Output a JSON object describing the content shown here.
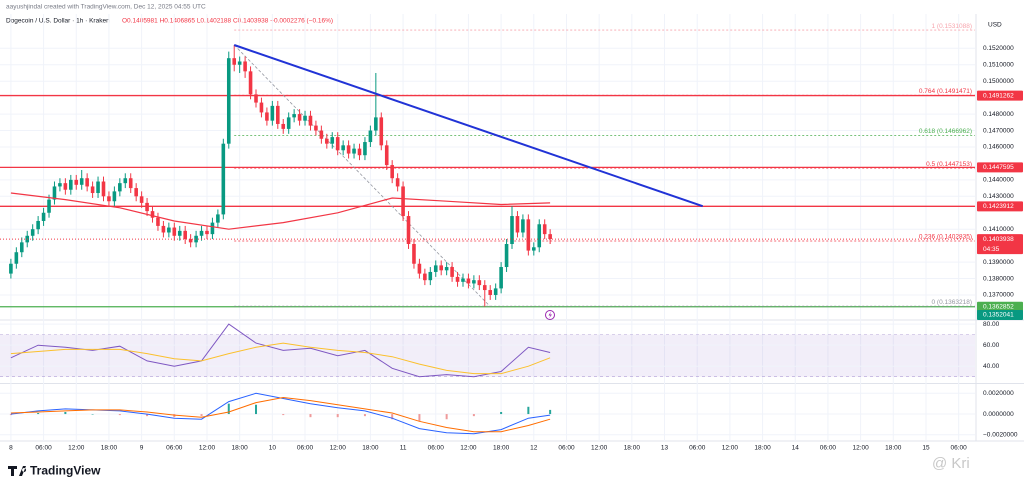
{
  "header": {
    "attribution": "aayushjindal created with TradingView.com, Dec 12, 2025 04:55 UTC",
    "symbol": "Dogecoin / U.S. Dollar · 1h · Kraken",
    "ohlc": "O0.1405981 H0.1406865 L0.1402188 C0.1403938 −0.0002276 (−0.16%)"
  },
  "chart_data": [
    {
      "type": "candlestick",
      "currency": "USD",
      "grid": true,
      "up_color": "#089981",
      "down_color": "#f23645",
      "ylim": [
        0.1356,
        0.1536
      ],
      "yticks": [
        {
          "value": 0.152,
          "label": "0.1520000"
        },
        {
          "value": 0.151,
          "label": "0.1510000"
        },
        {
          "value": 0.15,
          "label": "0.1500000"
        },
        {
          "value": 0.148,
          "label": "0.1480000"
        },
        {
          "value": 0.147,
          "label": "0.1470000"
        },
        {
          "value": 0.146,
          "label": "0.1460000"
        },
        {
          "value": 0.144,
          "label": "0.1440000"
        },
        {
          "value": 0.143,
          "label": "0.1430000"
        },
        {
          "value": 0.141,
          "label": "0.1410000"
        },
        {
          "value": 0.139,
          "label": "0.1390000"
        },
        {
          "value": 0.138,
          "label": "0.1380000"
        },
        {
          "value": 0.137,
          "label": "0.1370000"
        }
      ],
      "xlim": [
        -2,
        177
      ],
      "xticks": [
        {
          "value": 0,
          "label": "8"
        },
        {
          "value": 6,
          "label": "06:00"
        },
        {
          "value": 12,
          "label": "12:00"
        },
        {
          "value": 18,
          "label": "18:00"
        },
        {
          "value": 24,
          "label": "9"
        },
        {
          "value": 30,
          "label": "06:00"
        },
        {
          "value": 36,
          "label": "12:00"
        },
        {
          "value": 42,
          "label": "18:00"
        },
        {
          "value": 48,
          "label": "10"
        },
        {
          "value": 54,
          "label": "06:00"
        },
        {
          "value": 60,
          "label": "12:00"
        },
        {
          "value": 66,
          "label": "18:00"
        },
        {
          "value": 72,
          "label": "11"
        },
        {
          "value": 78,
          "label": "06:00"
        },
        {
          "value": 84,
          "label": "12:00"
        },
        {
          "value": 90,
          "label": "18:00"
        },
        {
          "value": 96,
          "label": "12"
        },
        {
          "value": 102,
          "label": "06:00"
        },
        {
          "value": 108,
          "label": "12:00"
        },
        {
          "value": 114,
          "label": "18:00"
        },
        {
          "value": 120,
          "label": "13"
        },
        {
          "value": 126,
          "label": "06:00"
        },
        {
          "value": 132,
          "label": "12:00"
        },
        {
          "value": 138,
          "label": "18:00"
        },
        {
          "value": 144,
          "label": "14"
        },
        {
          "value": 150,
          "label": "06:00"
        },
        {
          "value": 156,
          "label": "12:00"
        },
        {
          "value": 162,
          "label": "18:00"
        },
        {
          "value": 168,
          "label": "15"
        },
        {
          "value": 174,
          "label": "06:00"
        }
      ],
      "open": [
        0.1383,
        0.1389,
        0.1396,
        0.1402,
        0.1406,
        0.141,
        0.1415,
        0.142,
        0.1428,
        0.1436,
        0.1438,
        0.1434,
        0.144,
        0.1437,
        0.1441,
        0.1436,
        0.1432,
        0.1439,
        0.143,
        0.1427,
        0.1433,
        0.1438,
        0.1441,
        0.1435,
        0.143,
        0.1426,
        0.1421,
        0.1417,
        0.1412,
        0.1408,
        0.1411,
        0.1406,
        0.1409,
        0.1404,
        0.1402,
        0.1406,
        0.1409,
        0.1407,
        0.1414,
        0.1419,
        0.1462,
        0.1514,
        0.151,
        0.1512,
        0.1506,
        0.1492,
        0.1487,
        0.1481,
        0.1476,
        0.1485,
        0.1474,
        0.1471,
        0.1478,
        0.148,
        0.1476,
        0.1479,
        0.1473,
        0.147,
        0.1465,
        0.1462,
        0.1466,
        0.1458,
        0.1461,
        0.1456,
        0.1459,
        0.1455,
        0.1463,
        0.147,
        0.1478,
        0.1461,
        0.1449,
        0.1441,
        0.1436,
        0.1418,
        0.1401,
        0.1389,
        0.1383,
        0.1379,
        0.1384,
        0.1388,
        0.1385,
        0.1387,
        0.1381,
        0.1378,
        0.138,
        0.1377,
        0.1379,
        0.1376,
        0.1373,
        0.137,
        0.1374,
        0.1387,
        0.1401,
        0.1418,
        0.1408,
        0.1416,
        0.1397,
        0.1399,
        0.1413,
        0.1407
      ],
      "high": [
        0.1392,
        0.1399,
        0.1405,
        0.1409,
        0.1413,
        0.1418,
        0.1423,
        0.1431,
        0.1439,
        0.1441,
        0.1441,
        0.1443,
        0.1443,
        0.1446,
        0.1444,
        0.1439,
        0.1442,
        0.1442,
        0.1433,
        0.1436,
        0.1441,
        0.1444,
        0.1444,
        0.1438,
        0.1433,
        0.1429,
        0.1424,
        0.142,
        0.1415,
        0.1414,
        0.1414,
        0.1412,
        0.1412,
        0.1407,
        0.1409,
        0.1412,
        0.1412,
        0.1417,
        0.1422,
        0.1465,
        0.1518,
        0.1522,
        0.1515,
        0.1515,
        0.1509,
        0.1495,
        0.149,
        0.1484,
        0.1488,
        0.1488,
        0.1477,
        0.1481,
        0.1483,
        0.1483,
        0.1482,
        0.1482,
        0.1476,
        0.1473,
        0.1468,
        0.1469,
        0.1469,
        0.1464,
        0.1464,
        0.1462,
        0.1462,
        0.1466,
        0.1473,
        0.1505,
        0.1481,
        0.1464,
        0.1452,
        0.1444,
        0.1439,
        0.1421,
        0.1404,
        0.1392,
        0.1386,
        0.1387,
        0.1391,
        0.1391,
        0.139,
        0.139,
        0.1384,
        0.1383,
        0.1383,
        0.1382,
        0.1382,
        0.1379,
        0.1376,
        0.1377,
        0.139,
        0.1404,
        0.1424,
        0.1421,
        0.1419,
        0.1419,
        0.1402,
        0.1416,
        0.1416,
        0.141
      ],
      "low": [
        0.138,
        0.1386,
        0.1393,
        0.1399,
        0.1403,
        0.1407,
        0.1412,
        0.1417,
        0.1425,
        0.1433,
        0.1431,
        0.1431,
        0.1434,
        0.1434,
        0.1433,
        0.1429,
        0.1429,
        0.1427,
        0.1424,
        0.1424,
        0.143,
        0.1435,
        0.1432,
        0.1427,
        0.1423,
        0.1418,
        0.1414,
        0.1409,
        0.1405,
        0.1405,
        0.1403,
        0.1403,
        0.1401,
        0.1399,
        0.1399,
        0.1403,
        0.1404,
        0.1404,
        0.1411,
        0.1416,
        0.1459,
        0.1506,
        0.1505,
        0.1502,
        0.1489,
        0.1484,
        0.1478,
        0.1473,
        0.1473,
        0.1471,
        0.1468,
        0.1468,
        0.1475,
        0.1473,
        0.1473,
        0.147,
        0.1467,
        0.1462,
        0.1459,
        0.1459,
        0.1455,
        0.1455,
        0.1453,
        0.1453,
        0.1452,
        0.1452,
        0.146,
        0.1467,
        0.1458,
        0.1446,
        0.1438,
        0.1433,
        0.1415,
        0.1398,
        0.1386,
        0.138,
        0.1376,
        0.1376,
        0.1381,
        0.1382,
        0.1382,
        0.1378,
        0.1375,
        0.1375,
        0.1374,
        0.1374,
        0.1373,
        0.1363,
        0.1367,
        0.1367,
        0.1371,
        0.1384,
        0.1398,
        0.1405,
        0.1405,
        0.1394,
        0.1394,
        0.1396,
        0.1404,
        0.1401
      ],
      "close": [
        0.1389,
        0.1396,
        0.1402,
        0.1406,
        0.141,
        0.1415,
        0.142,
        0.1428,
        0.1436,
        0.1438,
        0.1434,
        0.144,
        0.1437,
        0.1441,
        0.1436,
        0.1432,
        0.1439,
        0.143,
        0.1427,
        0.1433,
        0.1438,
        0.1441,
        0.1435,
        0.143,
        0.1426,
        0.1421,
        0.1417,
        0.1412,
        0.1408,
        0.1411,
        0.1406,
        0.1409,
        0.1404,
        0.1402,
        0.1406,
        0.1409,
        0.1407,
        0.1414,
        0.1419,
        0.1462,
        0.1514,
        0.151,
        0.1512,
        0.1506,
        0.1492,
        0.1487,
        0.1481,
        0.1476,
        0.1485,
        0.1474,
        0.1471,
        0.1478,
        0.148,
        0.1476,
        0.1479,
        0.1473,
        0.147,
        0.1465,
        0.1462,
        0.1466,
        0.1458,
        0.1461,
        0.1456,
        0.1459,
        0.1455,
        0.1463,
        0.147,
        0.1478,
        0.1461,
        0.1449,
        0.1441,
        0.1436,
        0.1418,
        0.1401,
        0.1389,
        0.1383,
        0.1379,
        0.1384,
        0.1388,
        0.1385,
        0.1387,
        0.1381,
        0.1378,
        0.138,
        0.1377,
        0.1379,
        0.1376,
        0.1373,
        0.137,
        0.1374,
        0.1387,
        0.1401,
        0.1418,
        0.1408,
        0.1416,
        0.1397,
        0.1399,
        0.1413,
        0.1407,
        0.1404
      ],
      "ma": {
        "color": "#f23645",
        "x": [
          0,
          10,
          20,
          30,
          40,
          50,
          60,
          70,
          80,
          90,
          99
        ],
        "values": [
          0.1432,
          0.1428,
          0.1423,
          0.1415,
          0.141,
          0.1414,
          0.142,
          0.1429,
          0.1427,
          0.1425,
          0.1426
        ]
      },
      "levels": [
        {
          "value": 0.1491262,
          "color": "#f23645"
        },
        {
          "value": 0.1447595,
          "color": "#f23645"
        },
        {
          "value": 0.1423912,
          "color": "#f23645"
        },
        {
          "value": 0.1362852,
          "color": "#4caf50"
        },
        {
          "value": 0.1352041,
          "color": "#089981"
        }
      ],
      "fib_levels": [
        {
          "label": "1 (0.1531088)",
          "value": 0.1531088,
          "color": "#f7a5ad"
        },
        {
          "label": "0.764 (0.1491471)",
          "value": 0.1491471,
          "color": "#f23645"
        },
        {
          "label": "0.618 (0.1466962)",
          "value": 0.1466962,
          "color": "#4caf50"
        },
        {
          "label": "0.5 (0.1447153)",
          "value": 0.1447153,
          "color": "#f23645"
        },
        {
          "label": "0.236 (0.1402835)",
          "value": 0.1402835,
          "color": "#f23645"
        },
        {
          "label": "0 (0.1363218)",
          "value": 0.1363218,
          "color": "#9598a1"
        }
      ],
      "fib_start": 41,
      "fib_diagonal": {
        "x": [
          41,
          88
        ],
        "values": [
          0.1522,
          0.1363
        ],
        "color": "#9598a1"
      },
      "trendline": {
        "x": [
          41,
          127
        ],
        "values": [
          0.1522,
          0.1424
        ],
        "color": "#2133d6"
      },
      "current_price": {
        "value": 0.1403938,
        "countdown": "04:35",
        "color": "#f23645"
      }
    },
    {
      "type": "rsi",
      "ylim": [
        25,
        82
      ],
      "yticks": [
        {
          "value": 80,
          "label": "80.00"
        },
        {
          "value": 60,
          "label": "60.00"
        },
        {
          "value": 40,
          "label": "40.00"
        }
      ],
      "band": [
        30,
        70
      ],
      "lines": [
        {
          "color": "#7e57c2",
          "x": [
            0,
            5,
            10,
            15,
            20,
            25,
            30,
            35,
            40,
            45,
            50,
            55,
            60,
            65,
            70,
            75,
            80,
            85,
            90,
            95,
            99
          ],
          "values": [
            48,
            60,
            58,
            55,
            59,
            45,
            40,
            45,
            80,
            62,
            55,
            57,
            50,
            55,
            38,
            30,
            32,
            30,
            35,
            58,
            53
          ]
        },
        {
          "color": "#fbc02d",
          "x": [
            0,
            5,
            10,
            15,
            20,
            25,
            30,
            35,
            40,
            45,
            50,
            55,
            60,
            65,
            70,
            75,
            80,
            85,
            90,
            95,
            99
          ],
          "values": [
            52,
            54,
            56,
            56,
            56,
            52,
            47,
            45,
            52,
            58,
            62,
            58,
            55,
            53,
            49,
            42,
            36,
            33,
            33,
            40,
            48
          ]
        }
      ]
    },
    {
      "type": "macd",
      "ylim": [
        -0.0025,
        0.0028
      ],
      "yticks": [
        {
          "value": 0.002,
          "label": "0.0020000"
        },
        {
          "value": 0,
          "label": "0.0000000"
        },
        {
          "value": -0.002,
          "label": "−0.0020000"
        }
      ],
      "lines": [
        {
          "color": "#2962ff",
          "x": [
            0,
            5,
            10,
            15,
            20,
            25,
            30,
            35,
            40,
            45,
            50,
            55,
            60,
            65,
            70,
            75,
            80,
            85,
            90,
            95,
            99
          ],
          "values": [
            0,
            0.0003,
            0.0005,
            0.0004,
            0.0003,
            0,
            -0.0004,
            -0.0005,
            0.0012,
            0.002,
            0.0015,
            0.001,
            0.0006,
            0.0003,
            -0.0004,
            -0.0014,
            -0.0018,
            -0.0019,
            -0.0015,
            -0.0004,
            -0.0001
          ]
        },
        {
          "color": "#ff6d00",
          "x": [
            0,
            5,
            10,
            15,
            20,
            25,
            30,
            35,
            40,
            45,
            50,
            55,
            60,
            65,
            70,
            75,
            80,
            85,
            90,
            95,
            99
          ],
          "values": [
            0.0001,
            0.0002,
            0.0003,
            0.0004,
            0.0004,
            0.0002,
            -0.0001,
            -0.0003,
            0.0002,
            0.0011,
            0.0016,
            0.0013,
            0.0009,
            0.0005,
            0.0001,
            -0.0007,
            -0.0013,
            -0.0017,
            -0.0017,
            -0.0011,
            -0.0005
          ]
        }
      ],
      "histogram": {
        "up_color": "#26a69a",
        "down_color": "#ef9a9a",
        "x": [
          0,
          5,
          10,
          15,
          20,
          25,
          30,
          35,
          40,
          45,
          50,
          55,
          60,
          65,
          70,
          75,
          80,
          85,
          90,
          95,
          99
        ],
        "values": [
          -0.0001,
          0.0001,
          0.0002,
          0,
          -0.0001,
          -0.0002,
          -0.0003,
          -0.0002,
          0.001,
          0.0009,
          -0.0001,
          -0.0003,
          -0.0003,
          -0.0002,
          -0.0005,
          -0.0007,
          -0.0005,
          -0.0002,
          0.0002,
          0.0007,
          0.0004
        ]
      }
    }
  ],
  "footer": {
    "logo": "TradingView",
    "watermark": "@ Kri"
  }
}
